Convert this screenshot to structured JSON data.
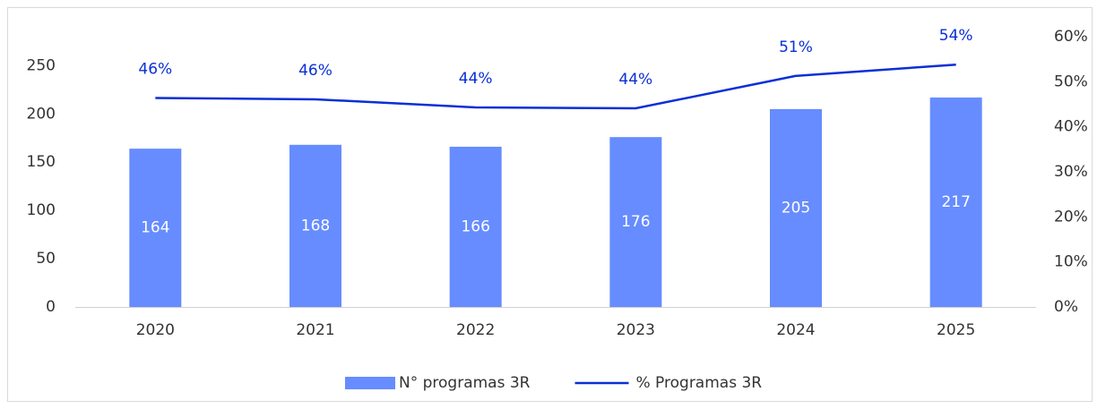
{
  "chart_data": {
    "type": "bar",
    "categories": [
      "2020",
      "2021",
      "2022",
      "2023",
      "2024",
      "2025"
    ],
    "series": [
      {
        "name": "N° programas 3R",
        "type": "bar",
        "color": "#668cff",
        "values": [
          164,
          168,
          166,
          176,
          205,
          217
        ]
      },
      {
        "name": "% Programas 3R",
        "type": "line",
        "axis": "y2",
        "color": "#0a2fd6",
        "values": [
          46.4,
          46.1,
          44.3,
          44.1,
          51.3,
          53.8
        ],
        "value_labels": [
          "46%",
          "46%",
          "44%",
          "44%",
          "51%",
          "54%"
        ]
      }
    ],
    "ylim": [
      0,
      280
    ],
    "yticks": [
      0,
      50,
      100,
      150,
      200,
      250
    ],
    "y2lim": [
      0,
      60
    ],
    "y2ticks": [
      {
        "value": 0,
        "label": "0%"
      },
      {
        "value": 10,
        "label": "10%"
      },
      {
        "value": 20,
        "label": "20%"
      },
      {
        "value": 30,
        "label": "30%"
      },
      {
        "value": 40,
        "label": "40%"
      },
      {
        "value": 50,
        "label": "50%"
      },
      {
        "value": 60,
        "label": "60%"
      }
    ],
    "grid": false,
    "legend": "bottom"
  }
}
